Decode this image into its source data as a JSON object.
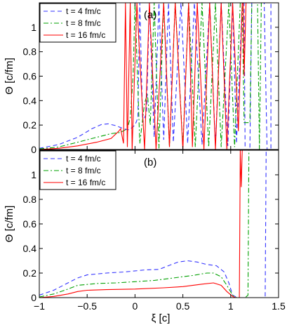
{
  "figure": {
    "shared_xlabel": "ξ [c]",
    "x_ticks": [
      "-1",
      "-0.5",
      "0",
      "0.5",
      "1",
      "1.5"
    ],
    "y_ticks": [
      "0",
      "0.2",
      "0.4",
      "0.6",
      "0.8",
      "1"
    ]
  },
  "chart_data": [
    {
      "type": "line",
      "panel_label": "(a)",
      "xlabel": "",
      "ylabel": "Θ [c/fm]",
      "xlim": [
        -1,
        1.5
      ],
      "ylim": [
        0,
        1.2
      ],
      "grid": false,
      "legend": "top-left",
      "series": [
        {
          "name": "t = 4 fm/c",
          "color": "#3333ff",
          "dash": "dashed",
          "points": [
            [
              -1,
              0.01
            ],
            [
              -0.8,
              0.04
            ],
            [
              -0.6,
              0.1
            ],
            [
              -0.45,
              0.17
            ],
            [
              -0.35,
              0.205
            ],
            [
              -0.28,
              0.21
            ],
            [
              -0.2,
              0.195
            ],
            [
              -0.12,
              0.17
            ],
            [
              -0.06,
              0.16
            ],
            [
              0,
              0.2
            ],
            [
              0.03,
              0.26
            ],
            [
              0.05,
              1.2
            ],
            [
              0.08,
              0.22
            ],
            [
              0.12,
              0.3
            ],
            [
              0.15,
              1.2
            ],
            [
              0.2,
              0.1
            ],
            [
              0.25,
              1.2
            ],
            [
              0.3,
              0.08
            ],
            [
              0.35,
              1.2
            ],
            [
              0.4,
              0.06
            ],
            [
              0.48,
              1.2
            ],
            [
              0.55,
              0.05
            ],
            [
              0.62,
              1.2
            ],
            [
              0.7,
              0.04
            ],
            [
              0.78,
              1.2
            ],
            [
              0.84,
              0.03
            ],
            [
              0.9,
              1.2
            ],
            [
              0.97,
              0.03
            ],
            [
              1.02,
              1.2
            ],
            [
              1.06,
              0.05
            ],
            [
              1.12,
              1.2
            ],
            [
              1.14,
              1.2
            ],
            [
              1.15,
              0
            ],
            [
              1.2,
              0
            ],
            [
              1.22,
              1.2
            ],
            [
              1.35,
              1.2
            ],
            [
              1.38,
              0
            ],
            [
              1.42,
              0
            ],
            [
              1.42,
              1.2
            ]
          ]
        },
        {
          "name": "t = 8 fm/c",
          "color": "#00a000",
          "dash": "dash-dot",
          "points": [
            [
              -1,
              0.005
            ],
            [
              -0.8,
              0.02
            ],
            [
              -0.6,
              0.06
            ],
            [
              -0.4,
              0.1
            ],
            [
              -0.25,
              0.13
            ],
            [
              -0.15,
              0.14
            ],
            [
              -0.08,
              0.17
            ],
            [
              -0.05,
              0.26
            ],
            [
              -0.02,
              0.6
            ],
            [
              0,
              1.2
            ],
            [
              0.05,
              0.05
            ],
            [
              0.1,
              0.38
            ],
            [
              0.13,
              0.45
            ],
            [
              0.16,
              0.2
            ],
            [
              0.2,
              1.2
            ],
            [
              0.25,
              0.01
            ],
            [
              0.3,
              1.2
            ],
            [
              0.36,
              0.02
            ],
            [
              0.42,
              1.2
            ],
            [
              0.5,
              0.02
            ],
            [
              0.56,
              1.2
            ],
            [
              0.63,
              0.02
            ],
            [
              0.7,
              1.2
            ],
            [
              0.77,
              0.02
            ],
            [
              0.84,
              1.2
            ],
            [
              0.9,
              0.02
            ],
            [
              0.98,
              1.2
            ],
            [
              1.04,
              0.02
            ],
            [
              1.1,
              1.2
            ],
            [
              1.12,
              1.2
            ],
            [
              1.14,
              0.22
            ],
            [
              1.2,
              0.22
            ],
            [
              1.22,
              1.2
            ],
            [
              1.28,
              1.2
            ],
            [
              1.3,
              0
            ],
            [
              1.32,
              1.2
            ]
          ]
        },
        {
          "name": "t = 16 fm/c",
          "color": "#ff0000",
          "dash": "solid",
          "points": [
            [
              -1,
              0
            ],
            [
              -0.8,
              0.01
            ],
            [
              -0.6,
              0.03
            ],
            [
              -0.4,
              0.06
            ],
            [
              -0.25,
              0.09
            ],
            [
              -0.17,
              0.15
            ],
            [
              -0.15,
              0.17
            ],
            [
              -0.12,
              0.05
            ],
            [
              -0.1,
              1.2
            ],
            [
              -0.08,
              0.02
            ],
            [
              -0.05,
              1.2
            ],
            [
              -0.03,
              0
            ],
            [
              0.02,
              1.2
            ],
            [
              0.1,
              0
            ],
            [
              0.15,
              1.2
            ],
            [
              0.22,
              0
            ],
            [
              0.3,
              1.2
            ],
            [
              0.36,
              0.02
            ],
            [
              0.42,
              1.2
            ],
            [
              0.5,
              0
            ],
            [
              0.56,
              1.2
            ],
            [
              0.6,
              0.02
            ],
            [
              0.65,
              1.2
            ],
            [
              0.72,
              0
            ],
            [
              0.78,
              1.2
            ],
            [
              0.84,
              0
            ],
            [
              0.9,
              1.2
            ],
            [
              0.96,
              0
            ],
            [
              1.02,
              1.2
            ],
            [
              1.08,
              0.15
            ],
            [
              1.12,
              1.2
            ],
            [
              1.13,
              1.2
            ],
            [
              1.14,
              0.6
            ],
            [
              1.16,
              1.2
            ]
          ]
        }
      ]
    },
    {
      "type": "line",
      "panel_label": "(b)",
      "xlabel": "ξ [c]",
      "ylabel": "Θ [c/fm]",
      "xlim": [
        -1,
        1.5
      ],
      "ylim": [
        0,
        1.2
      ],
      "grid": false,
      "legend": "top-left",
      "series": [
        {
          "name": "t = 4 fm/c",
          "color": "#3333ff",
          "dash": "dashed",
          "points": [
            [
              -1,
              0.02
            ],
            [
              -0.85,
              0.06
            ],
            [
              -0.7,
              0.12
            ],
            [
              -0.6,
              0.16
            ],
            [
              -0.5,
              0.185
            ],
            [
              -0.3,
              0.2
            ],
            [
              -0.1,
              0.21
            ],
            [
              0.1,
              0.225
            ],
            [
              0.25,
              0.23
            ],
            [
              0.35,
              0.26
            ],
            [
              0.45,
              0.29
            ],
            [
              0.55,
              0.3
            ],
            [
              0.65,
              0.29
            ],
            [
              0.75,
              0.27
            ],
            [
              0.85,
              0.26
            ],
            [
              0.93,
              0.21
            ],
            [
              0.98,
              0.12
            ],
            [
              1.02,
              0.02
            ],
            [
              1.07,
              0
            ],
            [
              1.3,
              0
            ],
            [
              1.36,
              0
            ],
            [
              1.37,
              1.2
            ],
            [
              1.38,
              1.2
            ]
          ]
        },
        {
          "name": "t = 8 fm/c",
          "color": "#00a000",
          "dash": "dash-dot",
          "points": [
            [
              -1,
              0.005
            ],
            [
              -0.85,
              0.03
            ],
            [
              -0.7,
              0.07
            ],
            [
              -0.6,
              0.1
            ],
            [
              -0.4,
              0.115
            ],
            [
              -0.2,
              0.12
            ],
            [
              0,
              0.13
            ],
            [
              0.2,
              0.14
            ],
            [
              0.4,
              0.16
            ],
            [
              0.6,
              0.18
            ],
            [
              0.75,
              0.2
            ],
            [
              0.82,
              0.2
            ],
            [
              0.9,
              0.17
            ],
            [
              0.96,
              0.1
            ],
            [
              1.02,
              0.02
            ],
            [
              1.06,
              0
            ],
            [
              1.15,
              0
            ],
            [
              1.18,
              0.02
            ],
            [
              1.19,
              1.2
            ]
          ]
        },
        {
          "name": "t = 16 fm/c",
          "color": "#ff0000",
          "dash": "solid",
          "points": [
            [
              -1,
              0
            ],
            [
              -0.85,
              0.01
            ],
            [
              -0.7,
              0.03
            ],
            [
              -0.6,
              0.05
            ],
            [
              -0.5,
              0.06
            ],
            [
              -0.3,
              0.065
            ],
            [
              0,
              0.07
            ],
            [
              0.3,
              0.08
            ],
            [
              0.5,
              0.09
            ],
            [
              0.7,
              0.11
            ],
            [
              0.82,
              0.12
            ],
            [
              0.9,
              0.1
            ],
            [
              0.96,
              0.05
            ],
            [
              1.02,
              0.01
            ],
            [
              1.05,
              0
            ],
            [
              1.09,
              0
            ],
            [
              1.1,
              1.2
            ],
            [
              1.11,
              0.9
            ],
            [
              1.12,
              1.2
            ]
          ]
        }
      ]
    }
  ]
}
